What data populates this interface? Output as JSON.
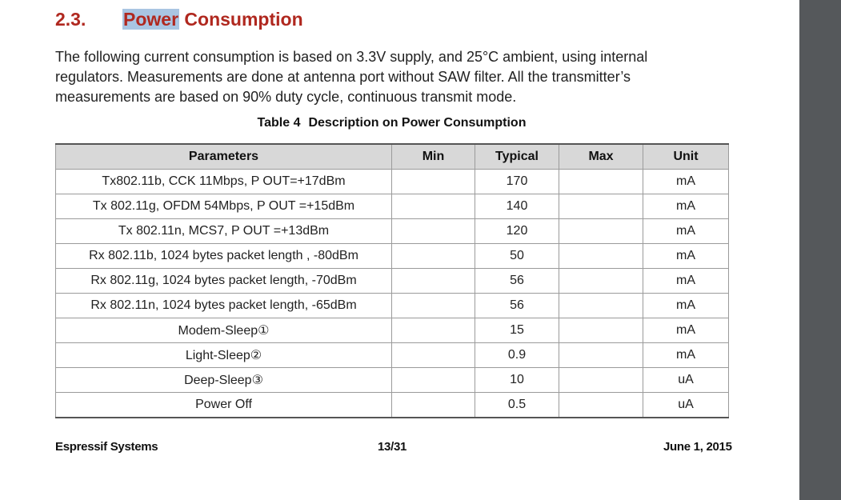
{
  "section": {
    "number": "2.3.",
    "title_highlight": "Power",
    "title_rest": " Consumption"
  },
  "intro": "The following current consumption is based on 3.3V supply, and 25°C ambient, using internal regulators. Measurements are done at antenna port without SAW filter. All the transmitter’s measurements are based on 90% duty cycle, continuous transmit mode.",
  "table": {
    "caption_label": "Table 4",
    "caption_title": "Description on Power Consumption",
    "headers": [
      "Parameters",
      "Min",
      "Typical",
      "Max",
      "Unit"
    ],
    "rows": [
      {
        "parameter": "Tx802.11b, CCK 11Mbps, P OUT=+17dBm",
        "min": "",
        "typical": "170",
        "max": "",
        "unit": "mA"
      },
      {
        "parameter": "Tx 802.11g, OFDM 54Mbps, P OUT =+15dBm",
        "min": "",
        "typical": "140",
        "max": "",
        "unit": "mA"
      },
      {
        "parameter": "Tx 802.11n, MCS7, P OUT =+13dBm",
        "min": "",
        "typical": "120",
        "max": "",
        "unit": "mA"
      },
      {
        "parameter": "Rx 802.11b, 1024 bytes packet length , -80dBm",
        "min": "",
        "typical": "50",
        "max": "",
        "unit": "mA"
      },
      {
        "parameter": "Rx 802.11g, 1024 bytes packet length, -70dBm",
        "min": "",
        "typical": "56",
        "max": "",
        "unit": "mA"
      },
      {
        "parameter": "Rx 802.11n, 1024 bytes packet length, -65dBm",
        "min": "",
        "typical": "56",
        "max": "",
        "unit": "mA"
      },
      {
        "parameter": "Modem-Sleep①",
        "min": "",
        "typical": "15",
        "max": "",
        "unit": "mA"
      },
      {
        "parameter": "Light-Sleep②",
        "min": "",
        "typical": "0.9",
        "max": "",
        "unit": "mA"
      },
      {
        "parameter": "Deep-Sleep③",
        "min": "",
        "typical": "10",
        "max": "",
        "unit": "uA"
      },
      {
        "parameter": "Power Off",
        "min": "",
        "typical": "0.5",
        "max": "",
        "unit": "uA"
      }
    ]
  },
  "footer": {
    "company": "Espressif Systems",
    "page": "13/31",
    "date": "June 1, 2015"
  }
}
